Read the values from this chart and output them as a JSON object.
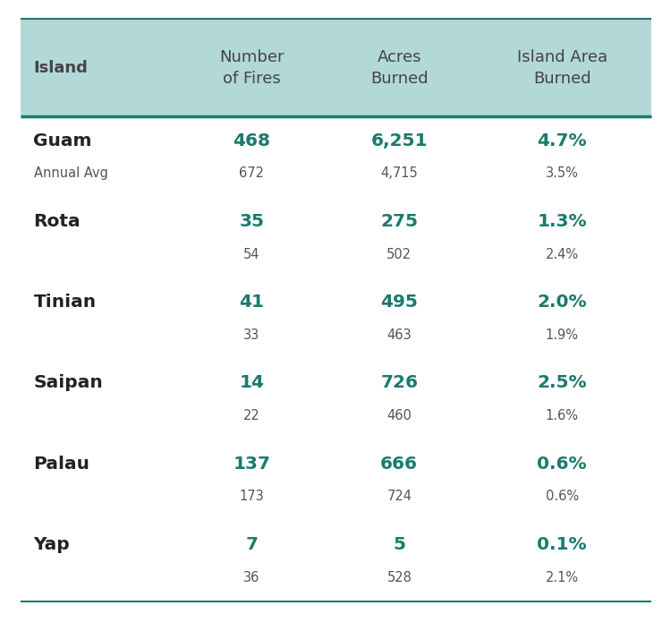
{
  "header": {
    "col0": "Island",
    "col1": "Number\nof Fires",
    "col2": "Acres\nBurned",
    "col3": "Island Area\nBurned"
  },
  "rows": [
    {
      "island": "Guam",
      "sub_label": "Annual Avg",
      "bold_vals": [
        "468",
        "6,251",
        "4.7%"
      ],
      "avg_vals": [
        "672",
        "4,715",
        "3.5%"
      ]
    },
    {
      "island": "Rota",
      "sub_label": "",
      "bold_vals": [
        "35",
        "275",
        "1.3%"
      ],
      "avg_vals": [
        "54",
        "502",
        "2.4%"
      ]
    },
    {
      "island": "Tinian",
      "sub_label": "",
      "bold_vals": [
        "41",
        "495",
        "2.0%"
      ],
      "avg_vals": [
        "33",
        "463",
        "1.9%"
      ]
    },
    {
      "island": "Saipan",
      "sub_label": "",
      "bold_vals": [
        "14",
        "726",
        "2.5%"
      ],
      "avg_vals": [
        "22",
        "460",
        "1.6%"
      ]
    },
    {
      "island": "Palau",
      "sub_label": "",
      "bold_vals": [
        "137",
        "666",
        "0.6%"
      ],
      "avg_vals": [
        "173",
        "724",
        "0.6%"
      ]
    },
    {
      "island": "Yap",
      "sub_label": "",
      "bold_vals": [
        "7",
        "5",
        "0.1%"
      ],
      "avg_vals": [
        "36",
        "528",
        "2.1%"
      ]
    }
  ],
  "header_bg": "#b2d8d8",
  "table_bg": "#ffffff",
  "bold_color": "#1a7a6e",
  "avg_color": "#555555",
  "island_bold_color": "#222222",
  "header_text_color": "#444444",
  "separator_color": "#1a7a6e",
  "fig_bg": "#ffffff"
}
